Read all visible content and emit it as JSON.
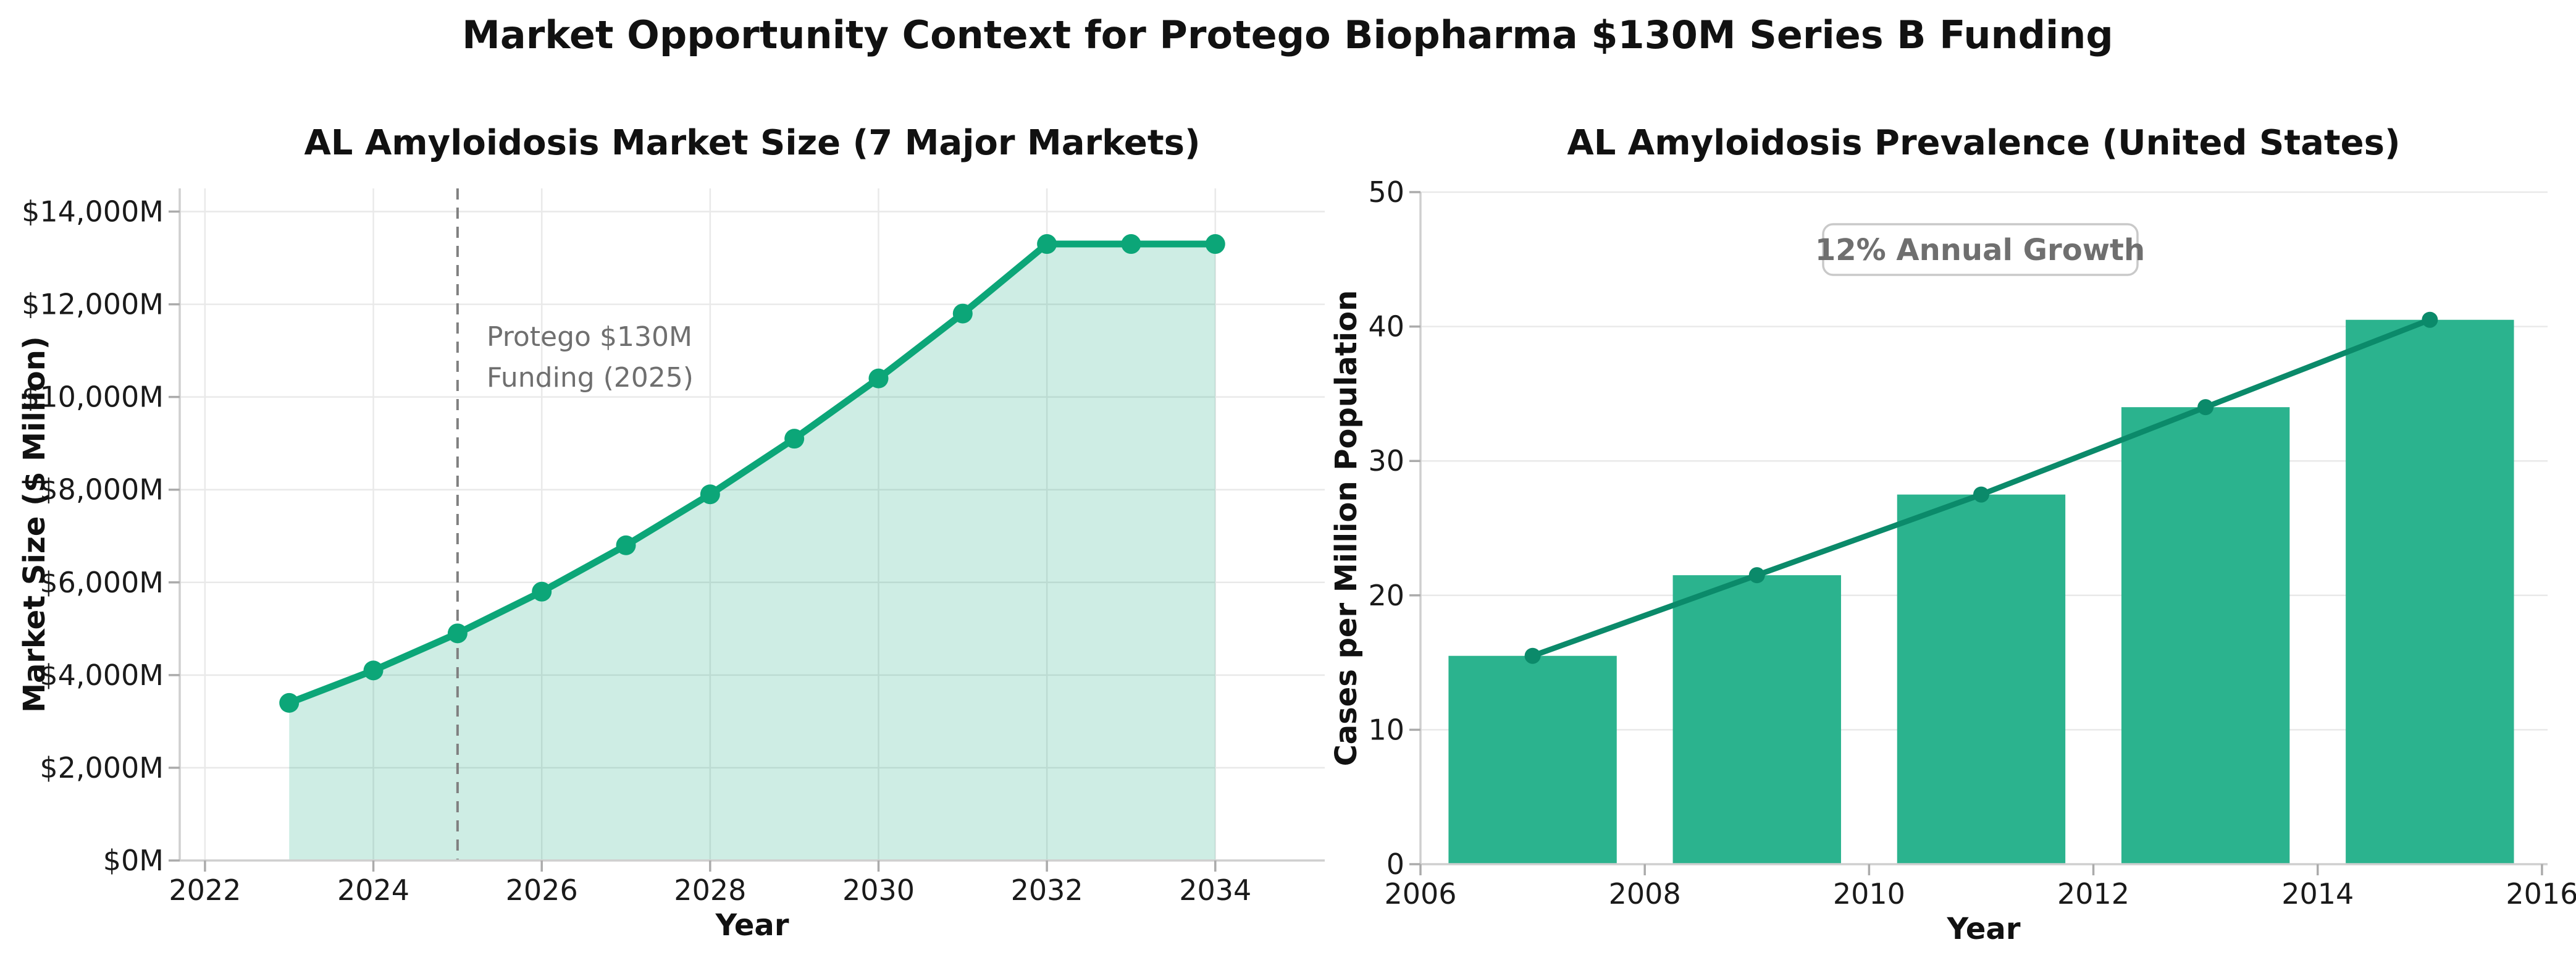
{
  "figure": {
    "title": "Market Opportunity Context for Protego Biopharma $130M Series B Funding",
    "background_color": "#ffffff"
  },
  "chart_data": [
    {
      "id": "market-size",
      "type": "area",
      "title": "AL Amyloidosis Market Size (7 Major Markets)",
      "xlabel": "Year",
      "ylabel": "Market Size ($ Million)",
      "x": [
        2023,
        2024,
        2025,
        2026,
        2027,
        2028,
        2029,
        2030,
        2031,
        2032,
        2033,
        2034
      ],
      "values": [
        3400,
        4100,
        4900,
        5800,
        6800,
        7900,
        9100,
        10400,
        11800,
        13300,
        13300,
        13300
      ],
      "xlim": [
        2021.7,
        2035.3
      ],
      "ylim": [
        0,
        14500
      ],
      "xticks": [
        2022,
        2024,
        2026,
        2028,
        2030,
        2032,
        2034
      ],
      "xtick_labels": [
        "2022",
        "2024",
        "2026",
        "2028",
        "2030",
        "2032",
        "2034"
      ],
      "yticks": [
        0,
        2000,
        4000,
        6000,
        8000,
        10000,
        12000,
        14000
      ],
      "ytick_labels": [
        "$0M",
        "$2,000M",
        "$4,000M",
        "$6,000M",
        "$8,000M",
        "$10,000M",
        "$12,000M",
        "$14,000M"
      ],
      "grid": "both",
      "legend_position": "none",
      "line_color": "#0ca678",
      "fill_opacity": 0.2,
      "vline": {
        "x": 2025,
        "color": "#808080",
        "style": "dashed"
      },
      "annotation": {
        "line1": "Protego $130M",
        "line2": "Funding (2025)",
        "color": "#6f6f6f"
      }
    },
    {
      "id": "prevalence",
      "type": "bar",
      "title": "AL Amyloidosis Prevalence (United States)",
      "xlabel": "Year",
      "ylabel": "Cases per Million Population",
      "categories": [
        2007,
        2009,
        2011,
        2013,
        2015
      ],
      "values": [
        15.5,
        21.5,
        27.5,
        34,
        40.5
      ],
      "line_overlay": true,
      "xlim": [
        2006,
        2016.05
      ],
      "ylim": [
        0,
        50
      ],
      "xticks": [
        2006,
        2008,
        2010,
        2012,
        2014,
        2016
      ],
      "xtick_labels": [
        "2006",
        "2008",
        "2010",
        "2012",
        "2014",
        "2016"
      ],
      "yticks": [
        0,
        10,
        20,
        30,
        40,
        50
      ],
      "ytick_labels": [
        "0",
        "10",
        "20",
        "30",
        "40",
        "50"
      ],
      "grid": "horizontal",
      "legend_position": "none",
      "bar_color": "#2bb38e",
      "line_color": "#0b8a6a",
      "annotation_box": {
        "text": "12% Annual Growth",
        "text_color": "#6f6f6f",
        "border_color": "#c9c9c9",
        "bg": "#ffffff"
      }
    }
  ],
  "style": {
    "grid_color": "#e9e9e9",
    "spine_color": "#cfcfcf",
    "tick_mark_color": "#ababab"
  }
}
